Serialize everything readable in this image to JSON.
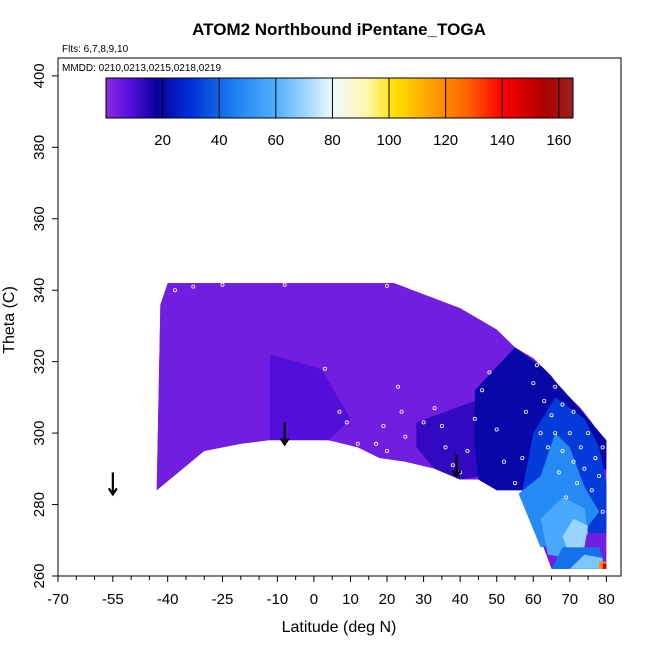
{
  "chart_data": {
    "type": "heatmap",
    "title": "ATOM2 Northbound iPentane_TOGA",
    "subtitle_flights": "Flts: 6,7,8,9,10",
    "subtitle_dates": "MMDD: 0210,0213,0215,0218,0219",
    "xlabel": "Latitude (deg N)",
    "ylabel": "Theta (C)",
    "xlim": [
      -70,
      84
    ],
    "ylim": [
      260,
      405
    ],
    "x_ticks": [
      -70,
      -55,
      -40,
      -25,
      -10,
      0,
      10,
      20,
      30,
      40,
      50,
      60,
      70,
      80
    ],
    "x_minor_ticks": [
      -65,
      -60,
      -50,
      -45,
      -35,
      -30,
      -20,
      -15,
      -5,
      5,
      15,
      25,
      35,
      45,
      55,
      65,
      75
    ],
    "y_ticks": [
      260,
      280,
      300,
      320,
      340,
      360,
      380,
      400
    ],
    "colorbar": {
      "min": 0,
      "max": 165,
      "ticks": [
        20,
        40,
        60,
        80,
        100,
        120,
        140,
        160
      ],
      "stops": [
        {
          "v": 0,
          "c": "#8a2be2"
        },
        {
          "v": 8,
          "c": "#5a10e0"
        },
        {
          "v": 18,
          "c": "#0a00a0"
        },
        {
          "v": 30,
          "c": "#0030d8"
        },
        {
          "v": 45,
          "c": "#1a80f0"
        },
        {
          "v": 60,
          "c": "#50b0ff"
        },
        {
          "v": 70,
          "c": "#9ad4ff"
        },
        {
          "v": 80,
          "c": "#f0f8ff"
        },
        {
          "v": 92,
          "c": "#fff8b0"
        },
        {
          "v": 102,
          "c": "#ffe000"
        },
        {
          "v": 115,
          "c": "#ffa000"
        },
        {
          "v": 128,
          "c": "#ff6000"
        },
        {
          "v": 140,
          "c": "#ff0000"
        },
        {
          "v": 155,
          "c": "#b00000"
        },
        {
          "v": 165,
          "c": "#9a2020"
        }
      ]
    },
    "arrows_latitude": [
      -55,
      -8,
      39
    ],
    "field_outline": [
      [
        -43,
        284
      ],
      [
        -42,
        336
      ],
      [
        -40,
        341
      ],
      [
        -40,
        342
      ],
      [
        22,
        342
      ],
      [
        22,
        341
      ],
      [
        27,
        339
      ],
      [
        33,
        337
      ],
      [
        40,
        335
      ],
      [
        45,
        332
      ],
      [
        50,
        329
      ],
      [
        55,
        324
      ],
      [
        60,
        321
      ],
      [
        63,
        318
      ],
      [
        65,
        316
      ],
      [
        67,
        313
      ],
      [
        70,
        310
      ],
      [
        73,
        307
      ],
      [
        76,
        303
      ],
      [
        78,
        300
      ],
      [
        80,
        298
      ],
      [
        80,
        262
      ],
      [
        65,
        262
      ],
      [
        57,
        284
      ],
      [
        50,
        284
      ],
      [
        45,
        287
      ],
      [
        40,
        287
      ],
      [
        33,
        290
      ],
      [
        25,
        292
      ],
      [
        18,
        293
      ],
      [
        12,
        296
      ],
      [
        4,
        298
      ],
      [
        -5,
        299
      ],
      [
        -20,
        297
      ],
      [
        -30,
        295
      ],
      [
        -43,
        284
      ]
    ],
    "field_regions": [
      {
        "value": 4,
        "polygon": [
          [
            -43,
            284
          ],
          [
            -42,
            336
          ],
          [
            -40,
            342
          ],
          [
            22,
            342
          ],
          [
            40,
            335
          ],
          [
            55,
            324
          ],
          [
            40,
            300
          ],
          [
            25,
            296
          ],
          [
            4,
            298
          ],
          [
            -5,
            299
          ],
          [
            -20,
            297
          ],
          [
            -30,
            295
          ]
        ]
      },
      {
        "value": 9,
        "polygon": [
          [
            -12,
            298
          ],
          [
            -12,
            322
          ],
          [
            2,
            318
          ],
          [
            10,
            304
          ],
          [
            4,
            298
          ]
        ]
      },
      {
        "value": 13,
        "polygon": [
          [
            28,
            296
          ],
          [
            28,
            303
          ],
          [
            44,
            309
          ],
          [
            52,
            300
          ],
          [
            52,
            289
          ],
          [
            40,
            287
          ],
          [
            33,
            290
          ]
        ]
      },
      {
        "value": 20,
        "polygon": [
          [
            44,
            296
          ],
          [
            44,
            312
          ],
          [
            55,
            324
          ],
          [
            63,
            318
          ],
          [
            70,
            310
          ],
          [
            80,
            298
          ],
          [
            80,
            290
          ],
          [
            70,
            286
          ],
          [
            57,
            284
          ],
          [
            50,
            284
          ],
          [
            45,
            287
          ]
        ]
      },
      {
        "value": 32,
        "polygon": [
          [
            57,
            284
          ],
          [
            60,
            300
          ],
          [
            66,
            310
          ],
          [
            74,
            304
          ],
          [
            78,
            296
          ],
          [
            80,
            286
          ],
          [
            80,
            272
          ],
          [
            70,
            272
          ]
        ]
      },
      {
        "value": 48,
        "polygon": [
          [
            56,
            283
          ],
          [
            62,
            288
          ],
          [
            66,
            300
          ],
          [
            70,
            296
          ],
          [
            74,
            285
          ],
          [
            78,
            278
          ],
          [
            72,
            270
          ],
          [
            62,
            268
          ]
        ]
      },
      {
        "value": 58,
        "polygon": [
          [
            62,
            276
          ],
          [
            68,
            282
          ],
          [
            74,
            279
          ],
          [
            75,
            272
          ],
          [
            70,
            265
          ],
          [
            64,
            266
          ]
        ]
      },
      {
        "value": 70,
        "polygon": [
          [
            68,
            271
          ],
          [
            71,
            276
          ],
          [
            75,
            274
          ],
          [
            74,
            268
          ],
          [
            70,
            266
          ]
        ]
      },
      {
        "value": 42,
        "polygon": [
          [
            65,
            262
          ],
          [
            68,
            268
          ],
          [
            78,
            268
          ],
          [
            80,
            262
          ]
        ]
      },
      {
        "value": 66,
        "polygon": [
          [
            70,
            262
          ],
          [
            74,
            266
          ],
          [
            79,
            265
          ],
          [
            79,
            262
          ]
        ]
      },
      {
        "value": 120,
        "polygon": [
          [
            78,
            262
          ],
          [
            78,
            264
          ],
          [
            80,
            264
          ],
          [
            80,
            262
          ]
        ]
      },
      {
        "value": 150,
        "polygon": [
          [
            79,
            262
          ],
          [
            79,
            263.5
          ],
          [
            80,
            263.5
          ],
          [
            80,
            262
          ]
        ]
      }
    ],
    "observations": [
      [
        -38,
        340
      ],
      [
        -33,
        341
      ],
      [
        -25,
        341.5
      ],
      [
        -8,
        341.5
      ],
      [
        20,
        341.2
      ],
      [
        3,
        318
      ],
      [
        7,
        306
      ],
      [
        9,
        303
      ],
      [
        12,
        297
      ],
      [
        17,
        297
      ],
      [
        19,
        302
      ],
      [
        20,
        295
      ],
      [
        23,
        313
      ],
      [
        24,
        306
      ],
      [
        25,
        299
      ],
      [
        30,
        303
      ],
      [
        33,
        307
      ],
      [
        35,
        302
      ],
      [
        36,
        296
      ],
      [
        38,
        291
      ],
      [
        40,
        289
      ],
      [
        42,
        295
      ],
      [
        44,
        304
      ],
      [
        46,
        312
      ],
      [
        48,
        317
      ],
      [
        50,
        301
      ],
      [
        52,
        292
      ],
      [
        55,
        286
      ],
      [
        57,
        293
      ],
      [
        58,
        306
      ],
      [
        60,
        314
      ],
      [
        61,
        319
      ],
      [
        62,
        300
      ],
      [
        63,
        309
      ],
      [
        64,
        296
      ],
      [
        65,
        305
      ],
      [
        66,
        300
      ],
      [
        66,
        313
      ],
      [
        67,
        289
      ],
      [
        68,
        295
      ],
      [
        68,
        308
      ],
      [
        69,
        282
      ],
      [
        70,
        300
      ],
      [
        71,
        292
      ],
      [
        71,
        306
      ],
      [
        72,
        286
      ],
      [
        73,
        296
      ],
      [
        74,
        290
      ],
      [
        75,
        300
      ],
      [
        76,
        284
      ],
      [
        77,
        293
      ],
      [
        78,
        288
      ],
      [
        79,
        278
      ],
      [
        79,
        296
      ]
    ]
  }
}
